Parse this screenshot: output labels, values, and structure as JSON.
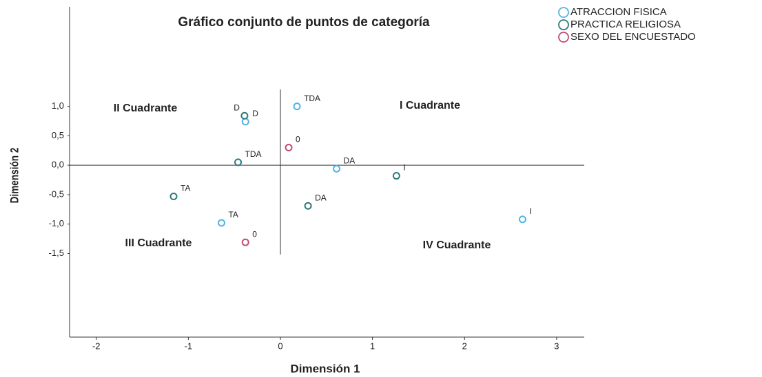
{
  "chart_data": {
    "type": "scatter",
    "title": "Gráfico conjunto de puntos de categoría",
    "x_label": "Dimensión 1",
    "y_label": "Dimensión 2",
    "xlim": [
      -2.29,
      3.3
    ],
    "ylim": [
      -2.92,
      2.69
    ],
    "xticks": [
      -2,
      -1,
      0,
      1,
      2,
      3
    ],
    "yticks": [
      {
        "value": -1.5,
        "label": "-1,5"
      },
      {
        "value": -1,
        "label": "-1,0"
      },
      {
        "value": -0.5,
        "label": "-0,5"
      },
      {
        "value": 0,
        "label": "0,0"
      },
      {
        "value": 0.5,
        "label": "0,5"
      },
      {
        "value": 1,
        "label": "1,0"
      }
    ],
    "annotations": [
      "II Cuadrante",
      "I Cuadrante",
      "III Cuadrante",
      "IV Cuadrante"
    ],
    "legend": "top-right",
    "series": [
      {
        "name": "ATRACCION FISICA",
        "color": "#4fb3e6",
        "labels": [
          "TDA",
          "D",
          "DA",
          "TA",
          "I"
        ],
        "x": [
          0.18,
          -0.38,
          0.61,
          -0.64,
          2.63
        ],
        "values": [
          1.0,
          0.74,
          -0.06,
          -0.98,
          -0.92
        ]
      },
      {
        "name": "PRACTICA RELIGIOSA",
        "color": "#2d7b78",
        "labels": [
          "D",
          "TDA",
          "TA",
          "DA",
          "I"
        ],
        "x": [
          -0.39,
          -0.46,
          -1.16,
          0.3,
          1.26
        ],
        "values": [
          0.84,
          0.05,
          -0.53,
          -0.69,
          -0.18
        ]
      },
      {
        "name": "SEXO DEL ENCUESTADO",
        "color": "#c24a72",
        "labels": [
          "0",
          "0"
        ],
        "x": [
          0.09,
          -0.38
        ],
        "values": [
          0.3,
          -1.31
        ]
      }
    ]
  }
}
